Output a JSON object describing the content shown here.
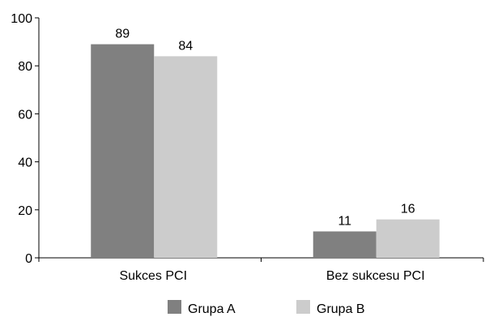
{
  "chart_data": {
    "type": "bar",
    "categories": [
      "Sukces PCI",
      "Bez sukcesu PCI"
    ],
    "series": [
      {
        "name": "Grupa A",
        "values": [
          89,
          11
        ],
        "color": "#808080"
      },
      {
        "name": "Grupa B",
        "values": [
          84,
          16
        ],
        "color": "#cccccc"
      }
    ],
    "ylim": [
      0,
      100
    ],
    "yticks": [
      0,
      20,
      40,
      60,
      80,
      100
    ],
    "grid": false,
    "legend_position": "bottom",
    "data_labels": true
  }
}
